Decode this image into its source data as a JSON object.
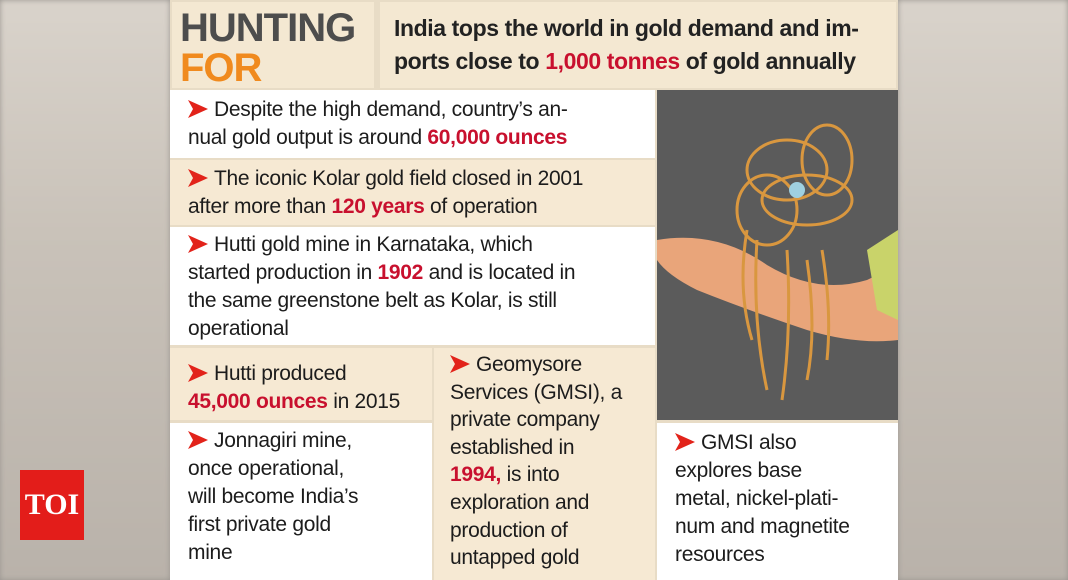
{
  "header": {
    "title": [
      "HUNTING",
      "FOR GOLD"
    ],
    "subtitle": [
      [
        {
          "text": "India tops the world in gold demand and im-"
        }
      ],
      [
        {
          "text": "ports close to "
        },
        {
          "text": "1,000 tonnes",
          "highlight": true
        },
        {
          "text": " of gold annually"
        }
      ]
    ]
  },
  "facts": [
    {
      "lines": [
        [
          {
            "text": "Despite the high demand, country’s an-"
          }
        ],
        [
          {
            "text": "nual gold output is around "
          },
          {
            "text": "60,000 ounces",
            "highlight": true
          }
        ]
      ]
    },
    {
      "lines": [
        [
          {
            "text": "The iconic Kolar gold field closed in 2001"
          }
        ],
        [
          {
            "text": "after more than "
          },
          {
            "text": "120 years",
            "highlight": true
          },
          {
            "text": " of operation"
          }
        ]
      ]
    },
    {
      "lines": [
        [
          {
            "text": "Hutti gold mine in Karnataka, which"
          }
        ],
        [
          {
            "text": "started production in "
          },
          {
            "text": "1902",
            "highlight": true
          },
          {
            "text": " and is located in"
          }
        ],
        [
          {
            "text": "the same greenstone belt as Kolar, is still"
          }
        ],
        [
          {
            "text": "operational"
          }
        ]
      ]
    },
    {
      "lines": [
        [
          {
            "text": "Hutti produced"
          }
        ],
        [
          {
            "text": "45,000 ounces",
            "highlight": true
          },
          {
            "text": " in 2015"
          }
        ]
      ]
    },
    {
      "lines": [
        [
          {
            "text": "Jonnagiri mine,"
          }
        ],
        [
          {
            "text": "once operational,"
          }
        ],
        [
          {
            "text": "will become India’s"
          }
        ],
        [
          {
            "text": "first private gold"
          }
        ],
        [
          {
            "text": "mine"
          }
        ]
      ]
    },
    {
      "lines": [
        [
          {
            "text": "Geomysore"
          }
        ],
        [
          {
            "text": "Services (GMSI), a"
          }
        ],
        [
          {
            "text": "private company"
          }
        ],
        [
          {
            "text": "established in"
          }
        ],
        [
          {
            "text": "1994,",
            "highlight": true
          },
          {
            "text": " is into"
          }
        ],
        [
          {
            "text": "exploration and"
          }
        ],
        [
          {
            "text": "production of"
          }
        ],
        [
          {
            "text": "untapped gold"
          }
        ]
      ]
    },
    {
      "lines": [
        [
          {
            "text": "GMSI also"
          }
        ],
        [
          {
            "text": "explores base"
          }
        ],
        [
          {
            "text": "metal, nickel-plati-"
          }
        ],
        [
          {
            "text": "num and magnetite"
          }
        ],
        [
          {
            "text": "resources"
          }
        ]
      ]
    }
  ],
  "logo": "TOI"
}
